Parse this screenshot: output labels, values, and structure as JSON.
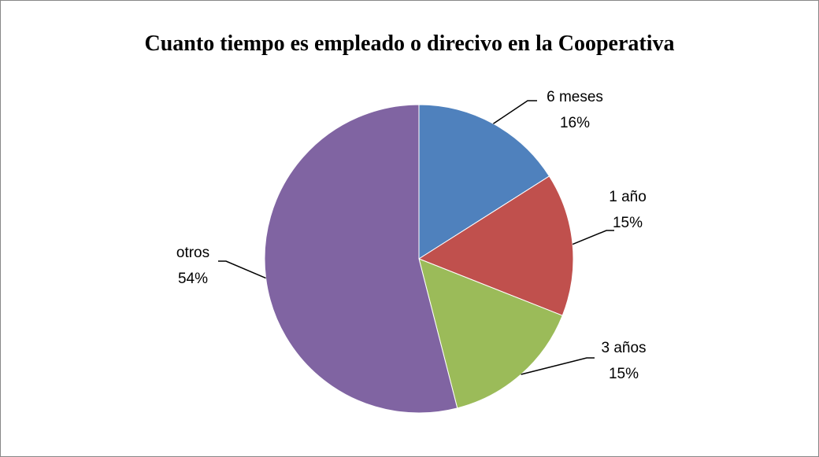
{
  "chart_data": {
    "type": "pie",
    "title": "Cuanto tiempo es empleado o direcivo en la Cooperativa",
    "categories": [
      "6 meses",
      "1 año",
      "3 años",
      "otros"
    ],
    "values": [
      16,
      15,
      15,
      54
    ],
    "value_labels": [
      "16%",
      "15%",
      "15%",
      "54%"
    ],
    "colors": [
      "#4f81bd",
      "#c0504d",
      "#9bbb59",
      "#8064a2"
    ]
  }
}
